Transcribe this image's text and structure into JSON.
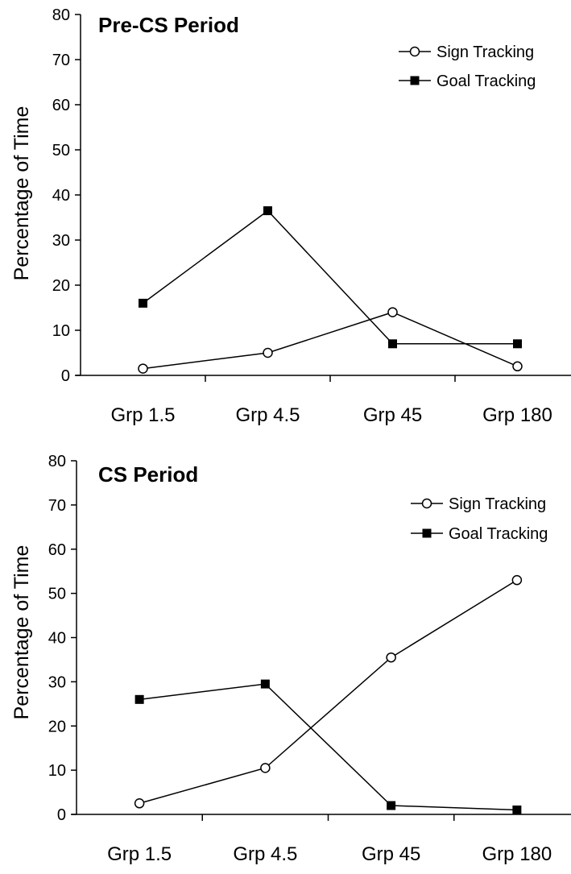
{
  "chart_data": [
    {
      "type": "line",
      "title": "Pre-CS Period",
      "xlabel": "",
      "ylabel": "Percentage of Time",
      "categories": [
        "Grp 1.5",
        "Grp 4.5",
        "Grp 45",
        "Grp 180"
      ],
      "ylim": [
        0,
        80
      ],
      "yticks": [
        "0",
        "10",
        "20",
        "30",
        "40",
        "50",
        "60",
        "70",
        "80"
      ],
      "grid": false,
      "legend_position": "top-right",
      "series": [
        {
          "name": "Sign Tracking",
          "marker": "open-circle",
          "values": [
            1.5,
            5,
            14,
            2
          ]
        },
        {
          "name": "Goal Tracking",
          "marker": "filled-square",
          "values": [
            16,
            36.5,
            7,
            7
          ]
        }
      ]
    },
    {
      "type": "line",
      "title": "CS Period",
      "xlabel": "",
      "ylabel": "Percentage of Time",
      "categories": [
        "Grp 1.5",
        "Grp 4.5",
        "Grp 45",
        "Grp 180"
      ],
      "ylim": [
        0,
        80
      ],
      "yticks": [
        "0",
        "10",
        "20",
        "30",
        "40",
        "50",
        "60",
        "70",
        "80"
      ],
      "grid": false,
      "legend_position": "top-right",
      "series": [
        {
          "name": "Sign Tracking",
          "marker": "open-circle",
          "values": [
            2.5,
            10.5,
            35.5,
            53
          ]
        },
        {
          "name": "Goal Tracking",
          "marker": "filled-square",
          "values": [
            26,
            29.5,
            2,
            1
          ]
        }
      ]
    }
  ]
}
